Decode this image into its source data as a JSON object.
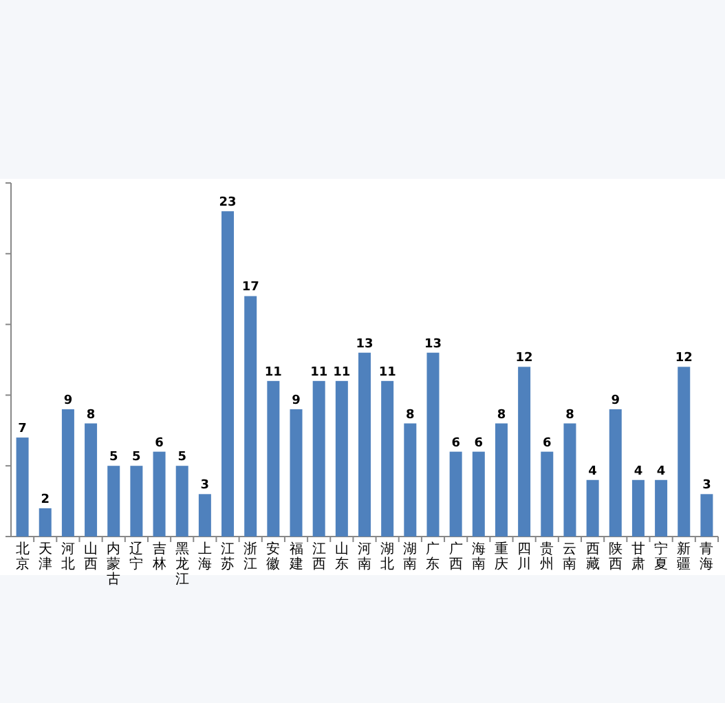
{
  "chart_data": {
    "type": "bar",
    "categories": [
      "北京",
      "天津",
      "河北",
      "山西",
      "内蒙古",
      "辽宁",
      "吉林",
      "黑龙江",
      "上海",
      "江苏",
      "浙江",
      "安徽",
      "福建",
      "江西",
      "山东",
      "河南",
      "湖北",
      "湖南",
      "广东",
      "广西",
      "海南",
      "重庆",
      "四川",
      "贵州",
      "云南",
      "西藏",
      "陕西",
      "甘肃",
      "宁夏",
      "新疆",
      "青海"
    ],
    "values": [
      7,
      2,
      9,
      8,
      5,
      5,
      6,
      5,
      3,
      23,
      17,
      11,
      9,
      11,
      11,
      13,
      11,
      8,
      13,
      6,
      6,
      8,
      12,
      6,
      8,
      4,
      9,
      4,
      4,
      12,
      3
    ],
    "color": "#4f81bd",
    "data_labels": true,
    "tick_labels": "x",
    "ylim": [
      0,
      25
    ],
    "yticks": [
      {
        "value": 0,
        "label": null
      },
      {
        "value": 5,
        "label": null
      },
      {
        "value": 10,
        "label": null
      },
      {
        "value": 15,
        "label": null
      },
      {
        "value": 20,
        "label": null
      },
      {
        "value": 25,
        "label": null
      }
    ]
  }
}
